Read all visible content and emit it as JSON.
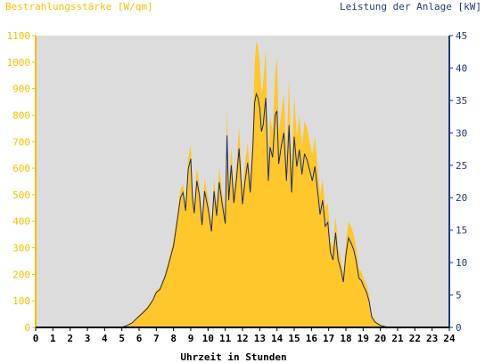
{
  "chart_data": {
    "type": "area",
    "left_axis_title": "Bestrahlungsstärke [W/qm]",
    "right_axis_title": "Leistung der Anlage [kW]",
    "xlabel": "Uhrzeit in Stunden",
    "xlim": [
      0,
      24
    ],
    "ylim_left": [
      0,
      1100
    ],
    "ylim_right": [
      0,
      45
    ],
    "x_ticks": [
      0,
      1,
      2,
      3,
      4,
      5,
      6,
      7,
      8,
      9,
      10,
      11,
      12,
      13,
      14,
      15,
      16,
      17,
      18,
      19,
      20,
      21,
      22,
      23,
      24
    ],
    "y_left_ticks": [
      0,
      100,
      200,
      300,
      400,
      500,
      600,
      700,
      800,
      900,
      1000,
      1100
    ],
    "y_right_ticks": [
      0,
      5,
      10,
      15,
      20,
      25,
      30,
      35,
      40,
      45
    ],
    "colors": {
      "irradiance_fill": "#ffc72c",
      "power_line": "#1a2d6b",
      "plot_bg": "#dcdcdc",
      "left_axis": "#f5c000",
      "right_axis": "#1f3a7a"
    },
    "series": [
      {
        "axis": "left",
        "x": [
          0,
          5.0,
          5.3,
          5.6,
          5.9,
          6.2,
          6.5,
          6.8,
          7.0,
          7.2,
          7.5,
          7.7,
          8.0,
          8.2,
          8.4,
          8.55,
          8.7,
          8.85,
          9.0,
          9.1,
          9.2,
          9.35,
          9.5,
          9.65,
          9.8,
          10.0,
          10.2,
          10.35,
          10.5,
          10.65,
          10.8,
          11.0,
          11.1,
          11.2,
          11.35,
          11.5,
          11.65,
          11.8,
          12.0,
          12.15,
          12.3,
          12.45,
          12.6,
          12.7,
          12.8,
          12.9,
          13.0,
          13.1,
          13.2,
          13.35,
          13.5,
          13.6,
          13.75,
          13.9,
          14.0,
          14.1,
          14.25,
          14.4,
          14.55,
          14.7,
          14.85,
          15.0,
          15.15,
          15.3,
          15.45,
          15.6,
          15.75,
          15.9,
          16.05,
          16.2,
          16.35,
          16.5,
          16.65,
          16.8,
          16.95,
          17.1,
          17.25,
          17.4,
          17.55,
          17.7,
          17.85,
          18.0,
          18.15,
          18.3,
          18.45,
          18.6,
          18.75,
          18.9,
          19.05,
          19.2,
          19.35,
          19.5,
          19.7,
          20.0,
          20.3,
          20.6,
          24
        ],
        "y": [
          0,
          0,
          10,
          20,
          40,
          60,
          80,
          110,
          140,
          150,
          200,
          250,
          330,
          420,
          520,
          540,
          470,
          640,
          690,
          520,
          470,
          600,
          540,
          420,
          560,
          490,
          400,
          560,
          460,
          600,
          520,
          430,
          830,
          530,
          680,
          520,
          620,
          760,
          520,
          620,
          700,
          570,
          760,
          980,
          1080,
          1060,
          1000,
          880,
          920,
          1050,
          640,
          790,
          740,
          960,
          1020,
          730,
          810,
          880,
          650,
          940,
          600,
          870,
          720,
          800,
          680,
          780,
          750,
          700,
          650,
          720,
          610,
          500,
          560,
          450,
          470,
          330,
          300,
          420,
          300,
          260,
          200,
          320,
          400,
          380,
          350,
          300,
          220,
          210,
          180,
          160,
          120,
          50,
          25,
          12,
          5,
          0,
          0
        ]
      },
      {
        "axis": "right",
        "x": [
          0,
          5.0,
          5.3,
          5.6,
          5.9,
          6.2,
          6.5,
          6.8,
          7.0,
          7.2,
          7.5,
          7.7,
          8.0,
          8.2,
          8.4,
          8.55,
          8.7,
          8.85,
          9.0,
          9.1,
          9.2,
          9.35,
          9.5,
          9.65,
          9.8,
          10.0,
          10.2,
          10.35,
          10.5,
          10.65,
          10.8,
          11.0,
          11.1,
          11.2,
          11.35,
          11.5,
          11.65,
          11.8,
          12.0,
          12.15,
          12.3,
          12.45,
          12.6,
          12.7,
          12.8,
          12.9,
          13.0,
          13.1,
          13.2,
          13.35,
          13.5,
          13.6,
          13.75,
          13.9,
          14.0,
          14.1,
          14.25,
          14.4,
          14.55,
          14.7,
          14.85,
          15.0,
          15.15,
          15.3,
          15.45,
          15.6,
          15.75,
          15.9,
          16.05,
          16.2,
          16.35,
          16.5,
          16.65,
          16.8,
          16.95,
          17.1,
          17.25,
          17.4,
          17.55,
          17.7,
          17.85,
          18.0,
          18.15,
          18.3,
          18.45,
          18.6,
          18.75,
          18.9,
          19.05,
          19.2,
          19.35,
          19.5,
          19.7,
          20.0,
          20.3,
          20.6,
          24
        ],
        "y": [
          0,
          0,
          0.3,
          0.7,
          1.5,
          2.2,
          3.0,
          4.2,
          5.4,
          5.8,
          7.8,
          9.6,
          12.6,
          16.2,
          20.0,
          20.8,
          18.0,
          24.4,
          26.0,
          19.8,
          17.6,
          22.6,
          20.4,
          15.8,
          21.0,
          18.4,
          14.8,
          21.0,
          17.2,
          22.4,
          19.4,
          16.0,
          29.6,
          19.6,
          25.0,
          19.2,
          22.8,
          27.6,
          19.0,
          22.6,
          25.4,
          20.8,
          27.6,
          34.6,
          36.0,
          35.4,
          33.8,
          30.2,
          31.2,
          35.4,
          22.6,
          27.8,
          26.2,
          32.8,
          33.4,
          25.2,
          28.0,
          30.0,
          22.6,
          31.2,
          20.8,
          29.4,
          24.8,
          27.4,
          23.6,
          26.8,
          25.8,
          24.2,
          22.6,
          24.8,
          21.2,
          17.4,
          19.6,
          15.6,
          16.2,
          11.6,
          10.4,
          14.6,
          10.4,
          9.0,
          7.0,
          11.2,
          13.8,
          13.0,
          12.0,
          10.2,
          7.6,
          7.2,
          6.2,
          5.4,
          4.0,
          1.6,
          0.8,
          0.3,
          0.1,
          0,
          0
        ]
      }
    ]
  }
}
